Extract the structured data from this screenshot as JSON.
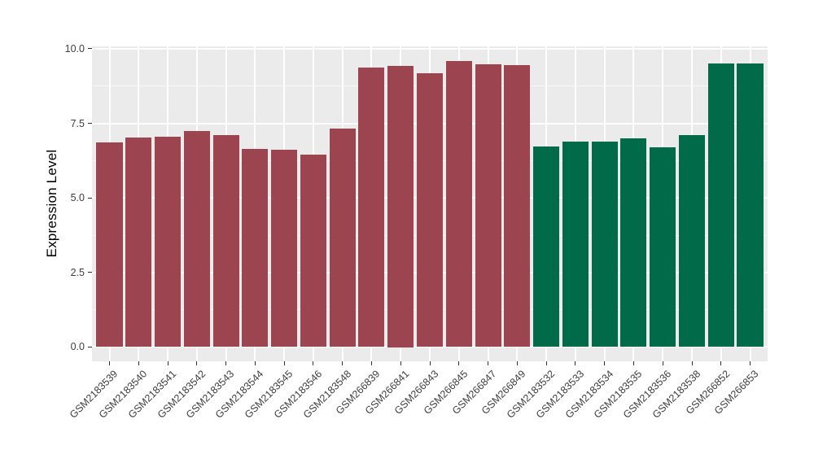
{
  "chart_data": {
    "type": "bar",
    "title": "",
    "xlabel": "",
    "ylabel": "Expression Level",
    "ylim": [
      0,
      10
    ],
    "grid": "on",
    "legend": "none",
    "y_ticks": [
      {
        "value": 0,
        "label": "0.0"
      },
      {
        "value": 2.5,
        "label": "2.5"
      },
      {
        "value": 5,
        "label": "5.0"
      },
      {
        "value": 7.5,
        "label": "7.5"
      },
      {
        "value": 10,
        "label": "10.0"
      }
    ],
    "y_minor_gridlines": [
      1.25,
      3.75,
      6.25,
      8.75
    ],
    "categories": [
      "GSM2183539",
      "GSM2183540",
      "GSM2183541",
      "GSM2183542",
      "GSM2183543",
      "GSM2183544",
      "GSM2183545",
      "GSM2183546",
      "GSM2183548",
      "GSM266839",
      "GSM266841",
      "GSM266843",
      "GSM266845",
      "GSM266847",
      "GSM266849",
      "GSM2183532",
      "GSM2183533",
      "GSM2183534",
      "GSM2183535",
      "GSM2183536",
      "GSM2183538",
      "GSM266852",
      "GSM266853"
    ],
    "values": [
      6.85,
      7.02,
      7.05,
      7.25,
      7.12,
      6.65,
      6.62,
      6.45,
      7.32,
      9.38,
      9.44,
      9.18,
      9.6,
      9.48,
      9.45,
      6.72,
      6.9,
      6.9,
      7.0,
      6.7,
      7.1,
      9.5,
      9.5
    ],
    "bar_groups": [
      "A",
      "A",
      "A",
      "A",
      "A",
      "A",
      "A",
      "A",
      "A",
      "A",
      "A",
      "A",
      "A",
      "A",
      "A",
      "B",
      "B",
      "B",
      "B",
      "B",
      "B",
      "B",
      "B"
    ],
    "group_colors": {
      "A": "#9C4450",
      "B": "#016A49"
    }
  },
  "style": {
    "panel_background": "#EBEBEB",
    "grid_major_color": "#FFFFFF",
    "grid_minor_color": "#FFFFFF",
    "grid_minor_opacity": "0.65",
    "axis_text_color": "#3f3f3f",
    "axis_title_color": "#000000",
    "tick_mark_color": "#333333"
  }
}
